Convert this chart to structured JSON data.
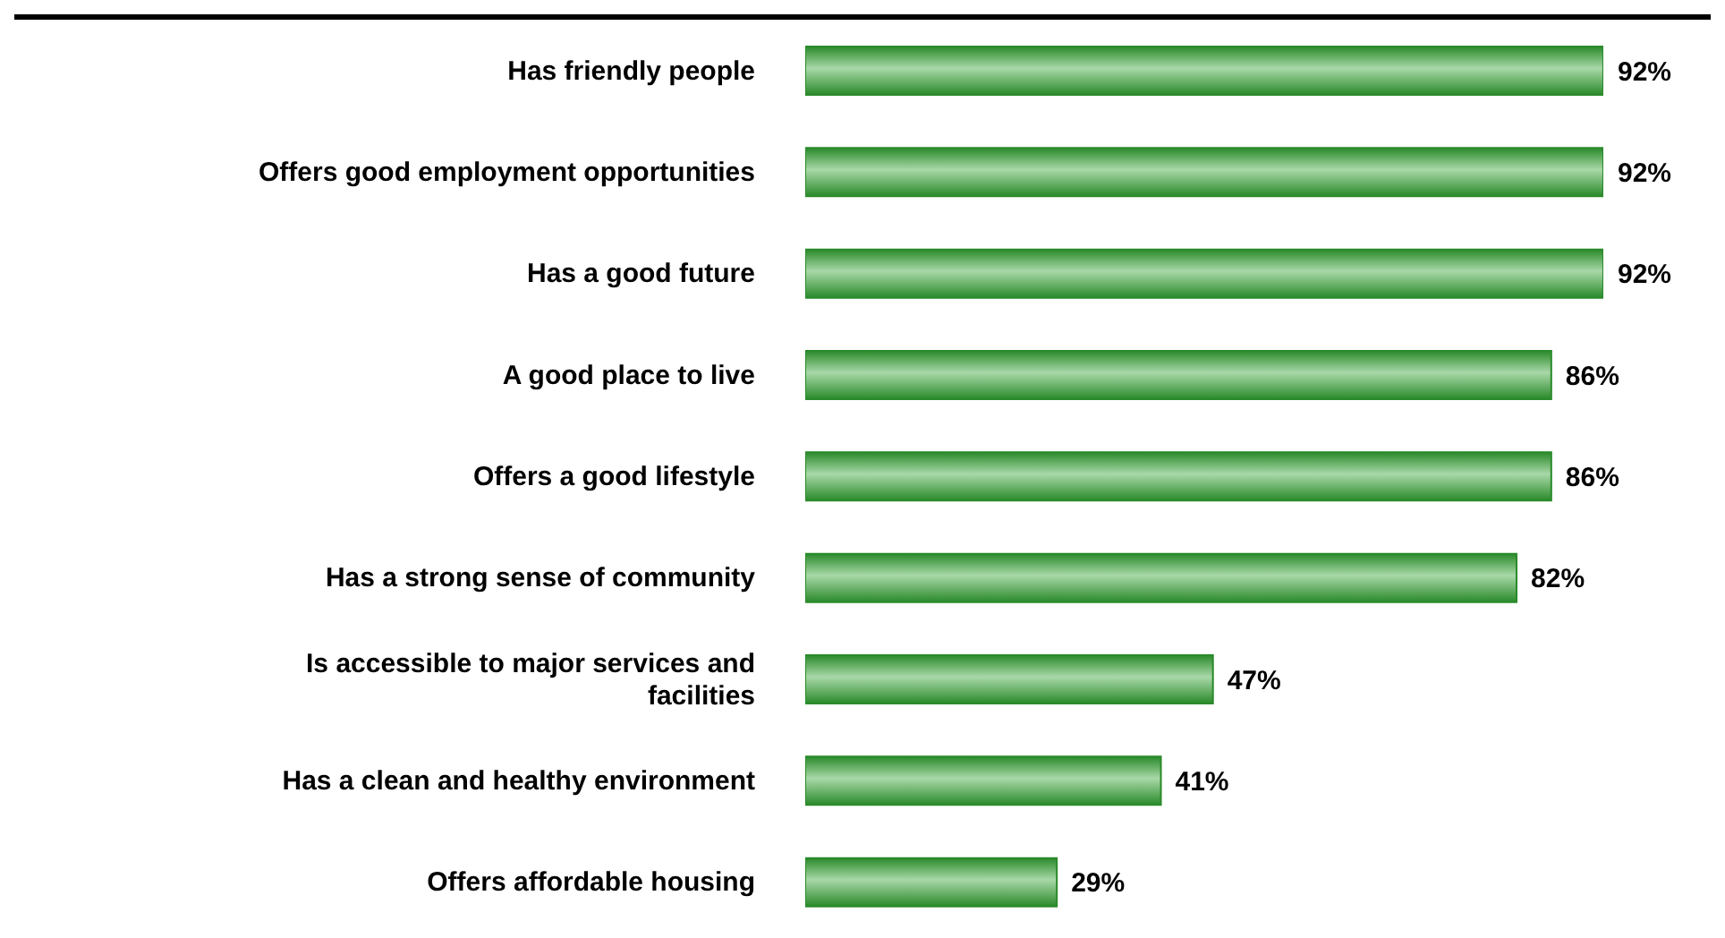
{
  "chart_data": {
    "type": "bar",
    "orientation": "horizontal",
    "categories": [
      "Has friendly people",
      "Offers good employment opportunities",
      "Has a good future",
      "A good place to live",
      "Offers a good lifestyle",
      "Has a strong sense of community",
      "Is accessible to major services and facilities",
      "Has a clean and healthy environment",
      "Offers affordable housing"
    ],
    "values": [
      92,
      92,
      92,
      86,
      86,
      82,
      47,
      41,
      29
    ],
    "color": "#2a8a2a",
    "data_labels": true,
    "value_labels": [
      "92%",
      "92%",
      "92%",
      "86%",
      "86%",
      "82%",
      "47%",
      "41%",
      "29%"
    ],
    "grid": false,
    "legend": false
  }
}
